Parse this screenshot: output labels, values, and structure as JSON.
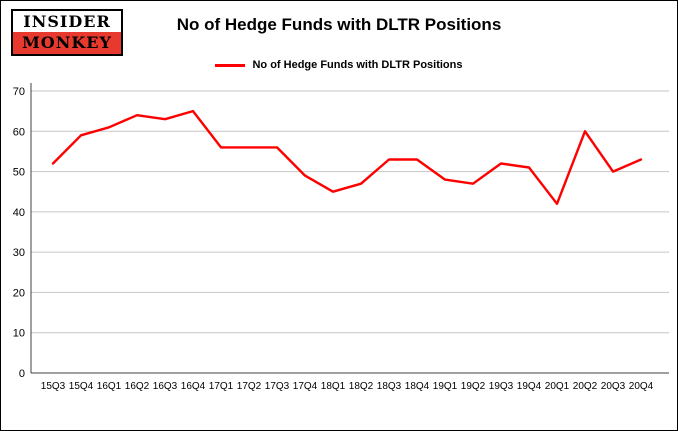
{
  "logo": {
    "line1": "INSIDER",
    "line2": "MONKEY"
  },
  "header": {
    "title": "No of Hedge Funds with DLTR Positions"
  },
  "legend": {
    "label": "No of Hedge Funds with DLTR Positions",
    "color": "#ff0000"
  },
  "chart_data": {
    "type": "line",
    "title": "No of Hedge Funds with DLTR Positions",
    "xlabel": "",
    "ylabel": "",
    "categories": [
      "15Q3",
      "15Q4",
      "16Q1",
      "16Q2",
      "16Q3",
      "16Q4",
      "17Q1",
      "17Q2",
      "17Q3",
      "17Q4",
      "18Q1",
      "18Q2",
      "18Q3",
      "18Q4",
      "19Q1",
      "19Q2",
      "19Q3",
      "19Q4",
      "20Q1",
      "20Q2",
      "20Q3",
      "20Q4"
    ],
    "series": [
      {
        "name": "No of Hedge Funds with DLTR Positions",
        "color": "#ff0000",
        "values": [
          52,
          59,
          61,
          64,
          63,
          65,
          56,
          56,
          56,
          49,
          45,
          47,
          53,
          53,
          48,
          47,
          52,
          51,
          42,
          60,
          50,
          53
        ]
      }
    ],
    "ylim": [
      0,
      70
    ],
    "yticks": [
      0,
      10,
      20,
      30,
      40,
      50,
      60,
      70
    ],
    "grid": true,
    "legend_position": "top-center",
    "line_color": "#ff0000",
    "grid_color": "#c6c6c6",
    "axis_color": "#404040"
  }
}
